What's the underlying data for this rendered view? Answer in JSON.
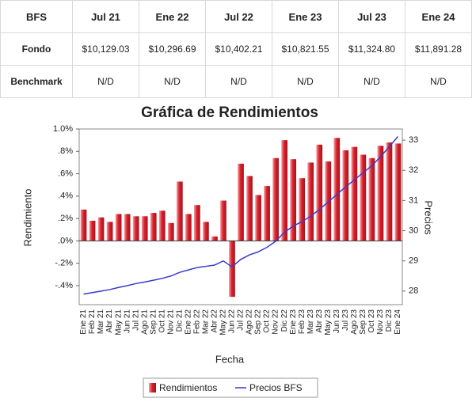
{
  "table": {
    "header": [
      "BFS",
      "Jul 21",
      "Ene 22",
      "Jul 22",
      "Ene 23",
      "Jul 23",
      "Ene 24"
    ],
    "rows": [
      [
        "Fondo",
        "$10,129.03",
        "$10,296.69",
        "$10,402.21",
        "$10,821.55",
        "$11,324.80",
        "$11,891.28"
      ],
      [
        "Benchmark",
        "N/D",
        "N/D",
        "N/D",
        "N/D",
        "N/D",
        "N/D"
      ]
    ]
  },
  "chart_data": {
    "type": "bar",
    "title": "Gráfica de Rendimientos",
    "x_label": "Fecha",
    "y_label": "Rendimiento",
    "y2_label": "Precios",
    "categories": [
      "Ene 21",
      "Feb 21",
      "Mar 21",
      "Abr 21",
      "May 21",
      "Jun 21",
      "Jul 21",
      "Ago 21",
      "Sep 21",
      "Oct 21",
      "Nov 21",
      "Dic 21",
      "Ene 22",
      "Feb 22",
      "Mar 22",
      "Abr 22",
      "May 22",
      "Jun 22",
      "Jul 22",
      "Ago 22",
      "Sep 22",
      "Oct 22",
      "Nov 22",
      "Dic 22",
      "Ene 23",
      "Feb 23",
      "Mar 23",
      "Abr 23",
      "May 23",
      "Jun 23",
      "Jul 23",
      "Ago 23",
      "Sep 23",
      "Oct 23",
      "Nov 23",
      "Dic 23",
      "Ene 24"
    ],
    "series": [
      {
        "name": "Rendimientos",
        "type": "bar",
        "color": "#d9232e",
        "values": [
          0.28,
          0.18,
          0.21,
          0.17,
          0.24,
          0.24,
          0.22,
          0.22,
          0.25,
          0.27,
          0.16,
          0.53,
          0.24,
          0.32,
          0.17,
          0.04,
          0.36,
          -0.5,
          0.69,
          0.58,
          0.41,
          0.49,
          0.74,
          0.9,
          0.73,
          0.56,
          0.7,
          0.86,
          0.71,
          0.92,
          0.81,
          0.84,
          0.77,
          0.74,
          0.85,
          0.88,
          0.87
        ]
      },
      {
        "name": "Precios BFS",
        "type": "line",
        "axis": "y2",
        "color": "#3a3acc",
        "values": [
          27.9,
          27.95,
          28.0,
          28.05,
          28.12,
          28.18,
          28.25,
          28.3,
          28.36,
          28.42,
          28.5,
          28.62,
          28.7,
          28.78,
          28.82,
          28.86,
          29.0,
          28.8,
          29.05,
          29.2,
          29.3,
          29.45,
          29.65,
          29.95,
          30.15,
          30.3,
          30.48,
          30.7,
          30.95,
          31.2,
          31.45,
          31.68,
          31.92,
          32.15,
          32.45,
          32.78,
          33.12
        ]
      }
    ],
    "ylim": [
      -0.57,
      1.0
    ],
    "yticks": [
      {
        "value": 1.0,
        "label": "1.0%"
      },
      {
        "value": 0.8,
        "label": ".8%"
      },
      {
        "value": 0.6,
        "label": ".6%"
      },
      {
        "value": 0.4,
        "label": ".4%"
      },
      {
        "value": 0.2,
        "label": ".2%"
      },
      {
        "value": 0,
        "label": ".0%"
      },
      {
        "value": -0.2,
        "label": "-.2%"
      },
      {
        "value": -0.4,
        "label": "-.4%"
      }
    ],
    "y2lim": [
      27.55,
      33.37
    ],
    "y2ticks": [
      28,
      29,
      30,
      31,
      32,
      33
    ],
    "legend": "bottom"
  }
}
